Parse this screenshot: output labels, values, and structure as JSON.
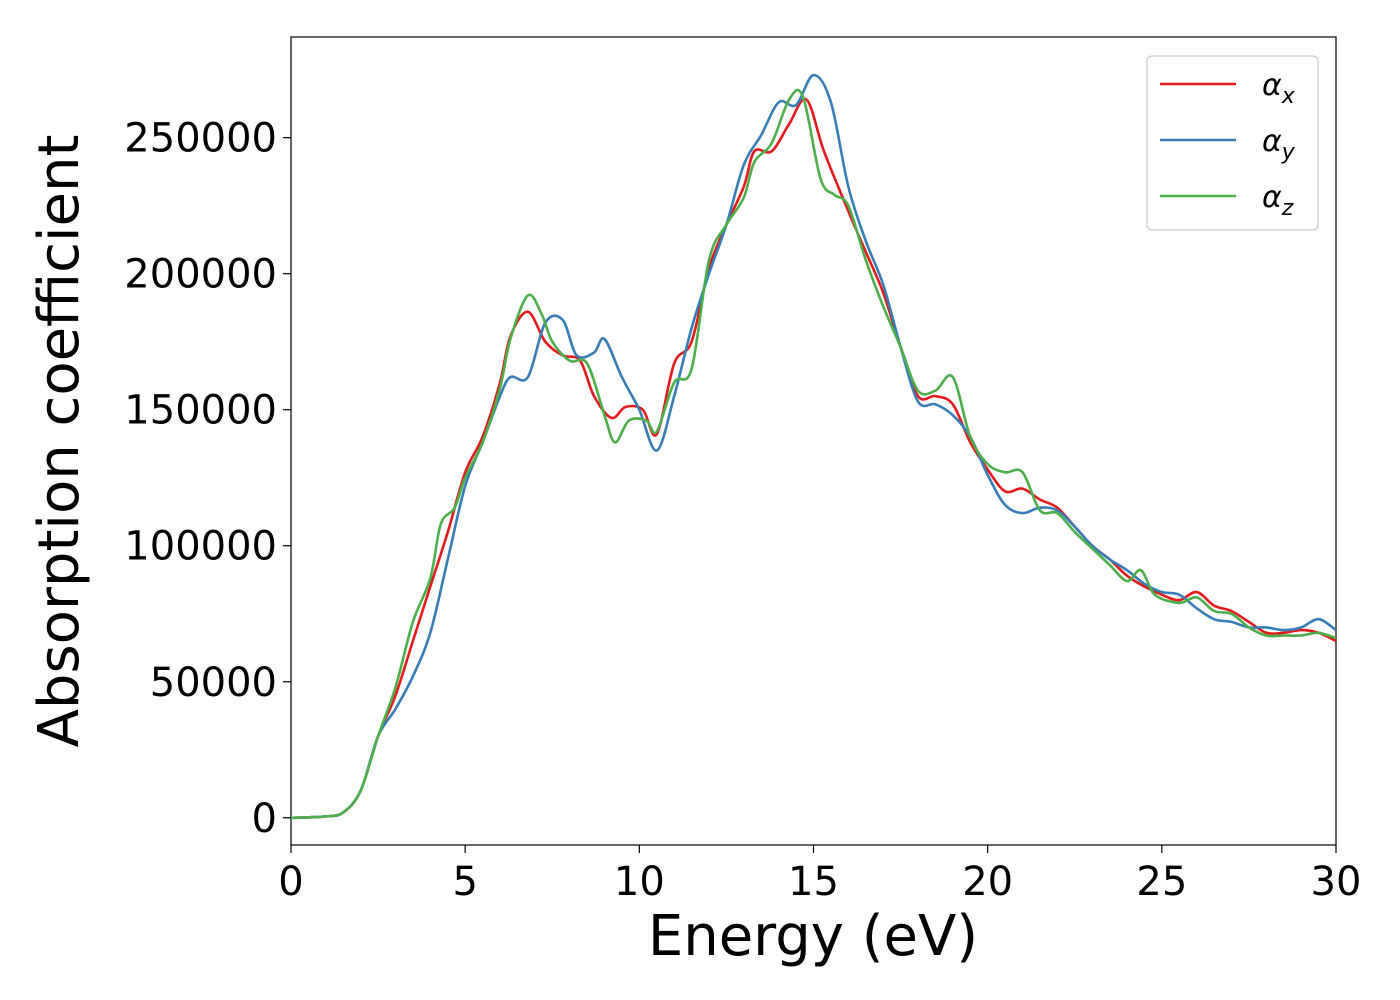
{
  "chart_data": {
    "type": "line",
    "title": "",
    "xlabel": "Energy (eV)",
    "ylabel": "Absorption coefficient",
    "xlim": [
      0,
      30
    ],
    "ylim": [
      -10000,
      287000
    ],
    "xticks": [
      0,
      5,
      10,
      15,
      20,
      25,
      30
    ],
    "yticks": [
      0,
      50000,
      100000,
      150000,
      200000,
      250000
    ],
    "grid": false,
    "legend_position": "top-right",
    "series": [
      {
        "name": "α",
        "subscript": "x",
        "color": "#e41a1c",
        "points": [
          [
            0,
            0
          ],
          [
            1,
            500
          ],
          [
            1.5,
            2000
          ],
          [
            2,
            10000
          ],
          [
            2.5,
            30000
          ],
          [
            3,
            45000
          ],
          [
            3.5,
            65000
          ],
          [
            4,
            85000
          ],
          [
            4.5,
            105000
          ],
          [
            5,
            127000
          ],
          [
            5.5,
            140000
          ],
          [
            6,
            160000
          ],
          [
            6.3,
            177000
          ],
          [
            6.8,
            186000
          ],
          [
            7.3,
            175000
          ],
          [
            7.8,
            170000
          ],
          [
            8.3,
            168000
          ],
          [
            8.7,
            155000
          ],
          [
            9.2,
            147000
          ],
          [
            9.6,
            151000
          ],
          [
            10.1,
            150000
          ],
          [
            10.5,
            141000
          ],
          [
            11,
            167000
          ],
          [
            11.5,
            175000
          ],
          [
            12,
            202000
          ],
          [
            12.5,
            218000
          ],
          [
            13,
            232000
          ],
          [
            13.3,
            245000
          ],
          [
            13.8,
            245000
          ],
          [
            14.3,
            255000
          ],
          [
            14.8,
            264000
          ],
          [
            15.3,
            245000
          ],
          [
            16,
            223000
          ],
          [
            16.5,
            208000
          ],
          [
            17,
            193000
          ],
          [
            17.5,
            173000
          ],
          [
            18,
            155000
          ],
          [
            18.5,
            155000
          ],
          [
            19,
            152000
          ],
          [
            19.5,
            138000
          ],
          [
            20,
            128000
          ],
          [
            20.5,
            120000
          ],
          [
            21,
            121000
          ],
          [
            21.5,
            117000
          ],
          [
            22,
            114000
          ],
          [
            22.5,
            107000
          ],
          [
            23,
            100000
          ],
          [
            23.5,
            95000
          ],
          [
            24,
            89000
          ],
          [
            24.5,
            85000
          ],
          [
            25,
            82000
          ],
          [
            25.5,
            80000
          ],
          [
            26,
            83000
          ],
          [
            26.5,
            78000
          ],
          [
            27,
            76000
          ],
          [
            27.5,
            72000
          ],
          [
            28,
            68000
          ],
          [
            28.5,
            68000
          ],
          [
            29,
            69000
          ],
          [
            29.5,
            68000
          ],
          [
            30,
            65000
          ]
        ]
      },
      {
        "name": "α",
        "subscript": "y",
        "color": "#377eb8",
        "points": [
          [
            0,
            0
          ],
          [
            1,
            500
          ],
          [
            1.5,
            2000
          ],
          [
            2,
            10000
          ],
          [
            2.5,
            30000
          ],
          [
            3,
            40000
          ],
          [
            3.5,
            52000
          ],
          [
            4,
            68000
          ],
          [
            4.5,
            95000
          ],
          [
            5,
            122000
          ],
          [
            5.5,
            138000
          ],
          [
            6,
            155000
          ],
          [
            6.3,
            162000
          ],
          [
            6.8,
            162000
          ],
          [
            7.3,
            182000
          ],
          [
            7.8,
            183000
          ],
          [
            8.2,
            170000
          ],
          [
            8.7,
            171000
          ],
          [
            9,
            176000
          ],
          [
            9.5,
            162000
          ],
          [
            10,
            150000
          ],
          [
            10.5,
            135000
          ],
          [
            11,
            155000
          ],
          [
            11.5,
            180000
          ],
          [
            12,
            200000
          ],
          [
            12.5,
            218000
          ],
          [
            13,
            240000
          ],
          [
            13.5,
            251000
          ],
          [
            14,
            263000
          ],
          [
            14.5,
            262000
          ],
          [
            15,
            273000
          ],
          [
            15.5,
            263000
          ],
          [
            16,
            232000
          ],
          [
            16.5,
            212000
          ],
          [
            17,
            196000
          ],
          [
            17.5,
            173000
          ],
          [
            18,
            153000
          ],
          [
            18.5,
            152000
          ],
          [
            19,
            148000
          ],
          [
            19.5,
            140000
          ],
          [
            20,
            126000
          ],
          [
            20.5,
            115000
          ],
          [
            21,
            112000
          ],
          [
            21.5,
            114000
          ],
          [
            22,
            113000
          ],
          [
            22.5,
            107000
          ],
          [
            23,
            100000
          ],
          [
            23.5,
            95000
          ],
          [
            24,
            91000
          ],
          [
            24.5,
            86000
          ],
          [
            25,
            83000
          ],
          [
            25.5,
            82000
          ],
          [
            26,
            77000
          ],
          [
            26.5,
            73000
          ],
          [
            27,
            72000
          ],
          [
            27.5,
            70000
          ],
          [
            28,
            70000
          ],
          [
            28.5,
            69000
          ],
          [
            29,
            70000
          ],
          [
            29.5,
            73000
          ],
          [
            30,
            69000
          ]
        ]
      },
      {
        "name": "α",
        "subscript": "z",
        "color": "#4daf4a",
        "points": [
          [
            0,
            0
          ],
          [
            1,
            500
          ],
          [
            1.5,
            2000
          ],
          [
            2,
            10000
          ],
          [
            2.5,
            30000
          ],
          [
            3,
            48000
          ],
          [
            3.5,
            72000
          ],
          [
            4,
            88000
          ],
          [
            4.3,
            108000
          ],
          [
            4.7,
            114000
          ],
          [
            5,
            125000
          ],
          [
            5.5,
            138000
          ],
          [
            6,
            158000
          ],
          [
            6.3,
            176000
          ],
          [
            6.8,
            192000
          ],
          [
            7.2,
            185000
          ],
          [
            7.5,
            175000
          ],
          [
            8,
            168000
          ],
          [
            8.5,
            167000
          ],
          [
            9,
            148000
          ],
          [
            9.3,
            138000
          ],
          [
            9.7,
            146000
          ],
          [
            10.2,
            146000
          ],
          [
            10.5,
            142000
          ],
          [
            11,
            160000
          ],
          [
            11.5,
            165000
          ],
          [
            12,
            205000
          ],
          [
            12.5,
            218000
          ],
          [
            13,
            228000
          ],
          [
            13.3,
            241000
          ],
          [
            13.8,
            248000
          ],
          [
            14.3,
            264000
          ],
          [
            14.7,
            265000
          ],
          [
            15.2,
            235000
          ],
          [
            15.6,
            229000
          ],
          [
            16,
            225000
          ],
          [
            16.5,
            205000
          ],
          [
            17,
            188000
          ],
          [
            17.5,
            173000
          ],
          [
            18,
            157000
          ],
          [
            18.5,
            157000
          ],
          [
            19,
            162000
          ],
          [
            19.5,
            140000
          ],
          [
            20,
            130000
          ],
          [
            20.5,
            127000
          ],
          [
            21,
            127000
          ],
          [
            21.5,
            113000
          ],
          [
            22,
            112000
          ],
          [
            22.5,
            105000
          ],
          [
            23,
            99000
          ],
          [
            23.5,
            93000
          ],
          [
            24,
            87000
          ],
          [
            24.4,
            91000
          ],
          [
            24.8,
            82000
          ],
          [
            25.5,
            79000
          ],
          [
            26,
            81000
          ],
          [
            26.5,
            76000
          ],
          [
            27,
            75000
          ],
          [
            27.5,
            70000
          ],
          [
            28,
            67000
          ],
          [
            28.5,
            67000
          ],
          [
            29,
            67000
          ],
          [
            29.5,
            68000
          ],
          [
            30,
            66000
          ]
        ]
      }
    ]
  }
}
